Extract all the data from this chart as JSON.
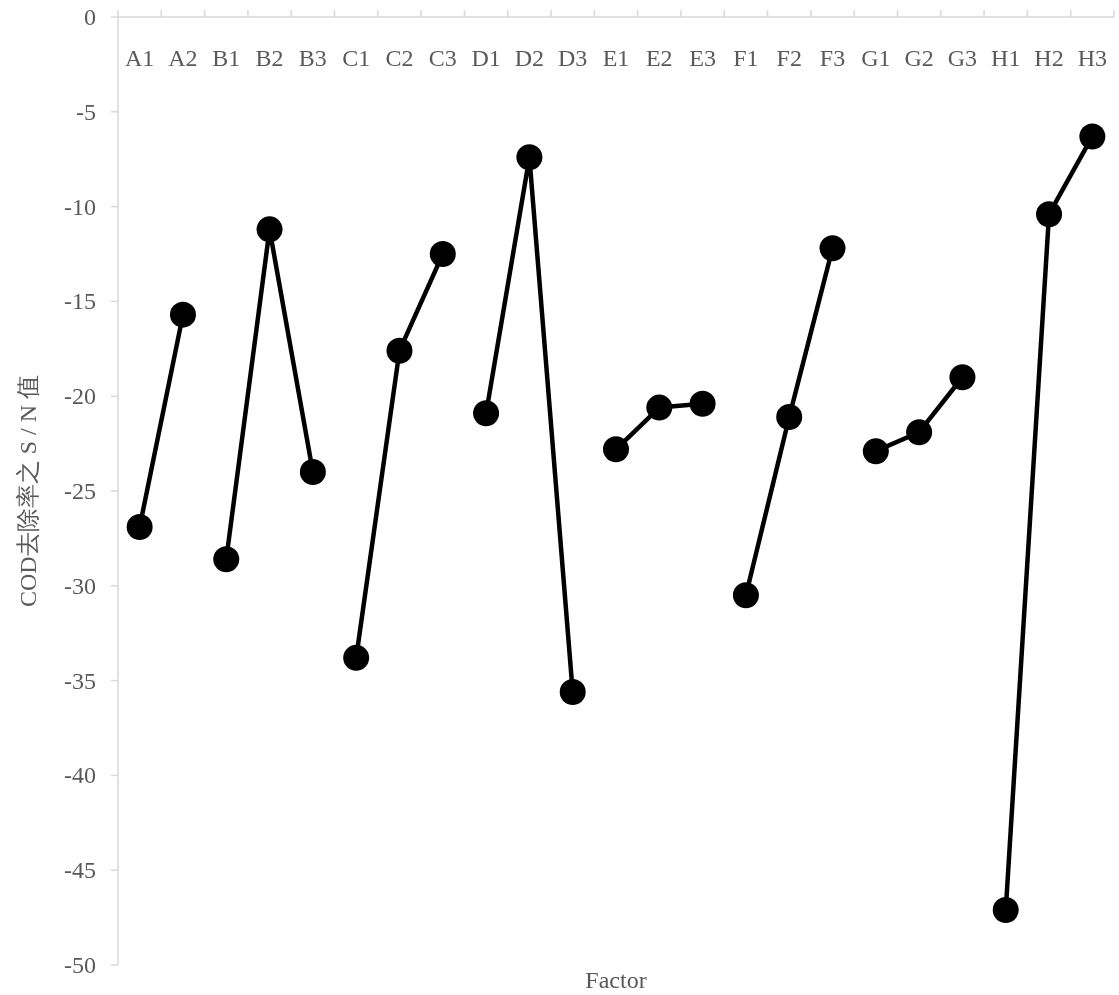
{
  "chart_data": {
    "type": "line",
    "xlabel": "Factor",
    "ylabel": "COD去除率之 S / N 值",
    "categories": [
      "A1",
      "A2",
      "B1",
      "B2",
      "B3",
      "C1",
      "C2",
      "C3",
      "D1",
      "D2",
      "D3",
      "E1",
      "E2",
      "E3",
      "F1",
      "F2",
      "F3",
      "G1",
      "G2",
      "G3",
      "H1",
      "H2",
      "H3"
    ],
    "ylim": [
      -50,
      0
    ],
    "yticks": [
      0,
      -5,
      -10,
      -15,
      -20,
      -25,
      -30,
      -35,
      -40,
      -45,
      -50
    ],
    "marker": "circle",
    "line_style": "solid",
    "series": [
      {
        "color": "#000000",
        "values": [
          -26.9,
          -15.7,
          null,
          null,
          null,
          null,
          null,
          null,
          null,
          null,
          null,
          null,
          null,
          null,
          null,
          null,
          null,
          null,
          null,
          null,
          null,
          null,
          null
        ]
      },
      {
        "color": "#000000",
        "values": [
          null,
          null,
          -28.6,
          -11.2,
          -24.0,
          null,
          null,
          null,
          null,
          null,
          null,
          null,
          null,
          null,
          null,
          null,
          null,
          null,
          null,
          null,
          null,
          null,
          null
        ]
      },
      {
        "color": "#000000",
        "values": [
          null,
          null,
          null,
          null,
          null,
          -33.8,
          -17.6,
          -12.5,
          null,
          null,
          null,
          null,
          null,
          null,
          null,
          null,
          null,
          null,
          null,
          null,
          null,
          null,
          null
        ]
      },
      {
        "color": "#000000",
        "values": [
          null,
          null,
          null,
          null,
          null,
          null,
          null,
          null,
          -20.9,
          -7.4,
          -35.6,
          null,
          null,
          null,
          null,
          null,
          null,
          null,
          null,
          null,
          null,
          null,
          null
        ]
      },
      {
        "color": "#000000",
        "values": [
          null,
          null,
          null,
          null,
          null,
          null,
          null,
          null,
          null,
          null,
          null,
          -22.8,
          -20.6,
          -20.4,
          null,
          null,
          null,
          null,
          null,
          null,
          null,
          null,
          null
        ]
      },
      {
        "color": "#000000",
        "values": [
          null,
          null,
          null,
          null,
          null,
          null,
          null,
          null,
          null,
          null,
          null,
          null,
          null,
          null,
          -30.5,
          -21.1,
          -12.2,
          null,
          null,
          null,
          null,
          null,
          null
        ]
      },
      {
        "color": "#000000",
        "values": [
          null,
          null,
          null,
          null,
          null,
          null,
          null,
          null,
          null,
          null,
          null,
          null,
          null,
          null,
          null,
          null,
          null,
          -22.9,
          -21.9,
          -19.0,
          null,
          null,
          null
        ]
      },
      {
        "color": "#000000",
        "values": [
          null,
          null,
          null,
          null,
          null,
          null,
          null,
          null,
          null,
          null,
          null,
          null,
          null,
          null,
          null,
          null,
          null,
          null,
          null,
          null,
          -47.1,
          -10.4,
          -6.3
        ]
      }
    ]
  }
}
